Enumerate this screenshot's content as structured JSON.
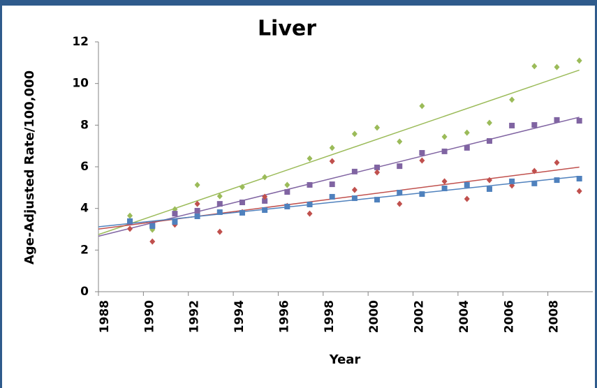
{
  "chart_data": {
    "type": "scatter",
    "title": "Liver",
    "y_label": "Age-Adjusted Rate/100,000",
    "x_label": "Year",
    "x": [
      1989.4,
      1990.4,
      1991.4,
      1992.4,
      1993.4,
      1994.4,
      1995.4,
      1996.4,
      1997.4,
      1998.4,
      1999.4,
      2000.4,
      2001.4,
      2002.4,
      2003.4,
      2004.4,
      2005.4,
      2006.4,
      2007.4,
      2008.4,
      2009.4
    ],
    "series": [
      {
        "color": "#9bbb59",
        "marker": "diamond",
        "values": [
          3.65,
          2.98,
          3.96,
          5.13,
          4.59,
          5.03,
          5.5,
          5.13,
          6.4,
          6.91,
          7.58,
          7.88,
          7.21,
          8.92,
          7.44,
          7.64,
          8.11,
          9.22,
          10.83,
          10.79,
          11.1
        ]
      },
      {
        "color": "#8064a2",
        "marker": "square",
        "values": [
          3.35,
          3.2,
          3.75,
          3.89,
          4.22,
          4.29,
          4.36,
          4.79,
          5.13,
          5.16,
          5.77,
          5.97,
          6.03,
          6.67,
          6.74,
          6.91,
          7.24,
          7.98,
          8.01,
          8.25,
          8.21
        ]
      },
      {
        "color": "#c0504d",
        "marker": "diamond",
        "values": [
          3.02,
          2.41,
          3.22,
          4.22,
          2.88,
          3.82,
          4.56,
          4.12,
          3.75,
          6.27,
          4.89,
          5.73,
          4.22,
          6.3,
          5.3,
          4.46,
          5.36,
          5.1,
          5.8,
          6.2,
          4.83
        ]
      },
      {
        "color": "#4f81bd",
        "marker": "square",
        "values": [
          3.39,
          3.15,
          3.35,
          3.62,
          3.82,
          3.79,
          3.92,
          4.09,
          4.19,
          4.56,
          4.49,
          4.42,
          4.76,
          4.69,
          4.96,
          5.13,
          4.93,
          5.3,
          5.2,
          5.36,
          5.43
        ]
      }
    ],
    "trendline": "linear",
    "xlim": [
      1988,
      2010
    ],
    "xticks": [
      1988,
      1990,
      1992,
      1994,
      1996,
      1998,
      2000,
      2002,
      2004,
      2006,
      2008
    ],
    "ylim": [
      0,
      12
    ],
    "yticks": [
      0,
      2,
      4,
      6,
      8,
      10,
      12
    ]
  }
}
